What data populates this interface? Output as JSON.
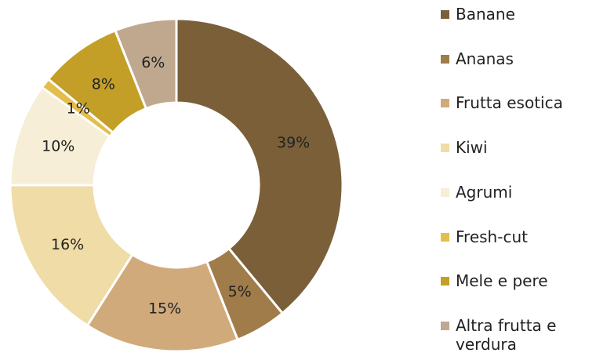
{
  "chart_data": {
    "type": "donut",
    "categories": [
      "Banane",
      "Ananas",
      "Frutta esotica",
      "Kiwi",
      "Agrumi",
      "Fresh-cut",
      "Mele e pere",
      "Altra frutta e verdura"
    ],
    "values": [
      39,
      5,
      15,
      16,
      10,
      1,
      8,
      6
    ],
    "value_labels": [
      "39%",
      "5%",
      "15%",
      "16%",
      "10%",
      "1%",
      "8%",
      "6%"
    ],
    "colors": [
      "#7a5f38",
      "#a07c4a",
      "#d1aa7c",
      "#efdca6",
      "#f6eed6",
      "#e5bd4d",
      "#c39f28",
      "#bfa88e"
    ],
    "legend": "right"
  }
}
